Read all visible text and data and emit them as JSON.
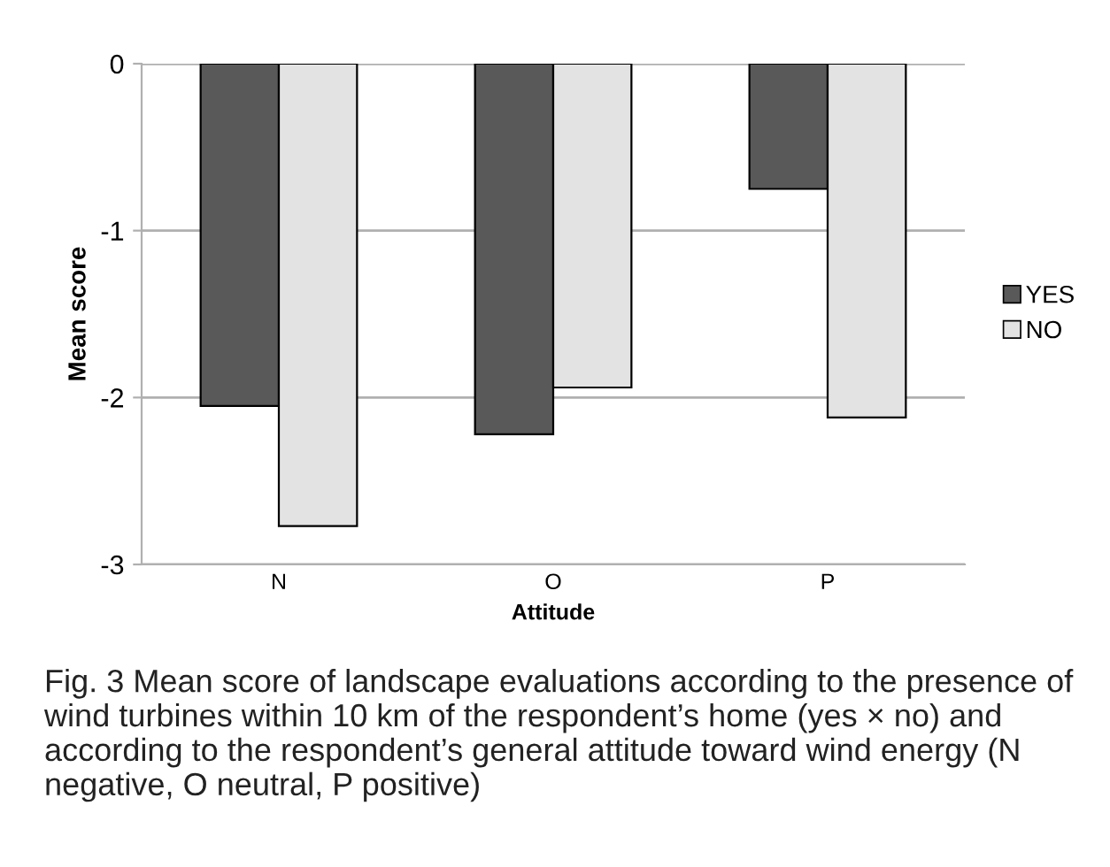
{
  "chart_data": {
    "type": "bar",
    "xlabel": "Attitude",
    "ylabel": "Mean score",
    "categories": [
      "N",
      "O",
      "P"
    ],
    "series": [
      {
        "name": "YES",
        "color": "#595959",
        "values": [
          -2.05,
          -2.22,
          -0.75
        ]
      },
      {
        "name": "NO",
        "color": "#e3e3e3",
        "values": [
          -2.77,
          -1.94,
          -2.12
        ]
      }
    ],
    "ylim": [
      -3,
      0
    ],
    "yticks": [
      -3,
      -2,
      -1,
      0
    ],
    "grid": "y",
    "legend": "right",
    "annotations": [
      "Fig. 3 Mean score of landscape evaluations according to the presence of wind turbines within 10 km of the respondent’s home (yes × no) and according to the respondent’s general attitude toward wind energy (N negative, O neutral, P positive)"
    ]
  }
}
